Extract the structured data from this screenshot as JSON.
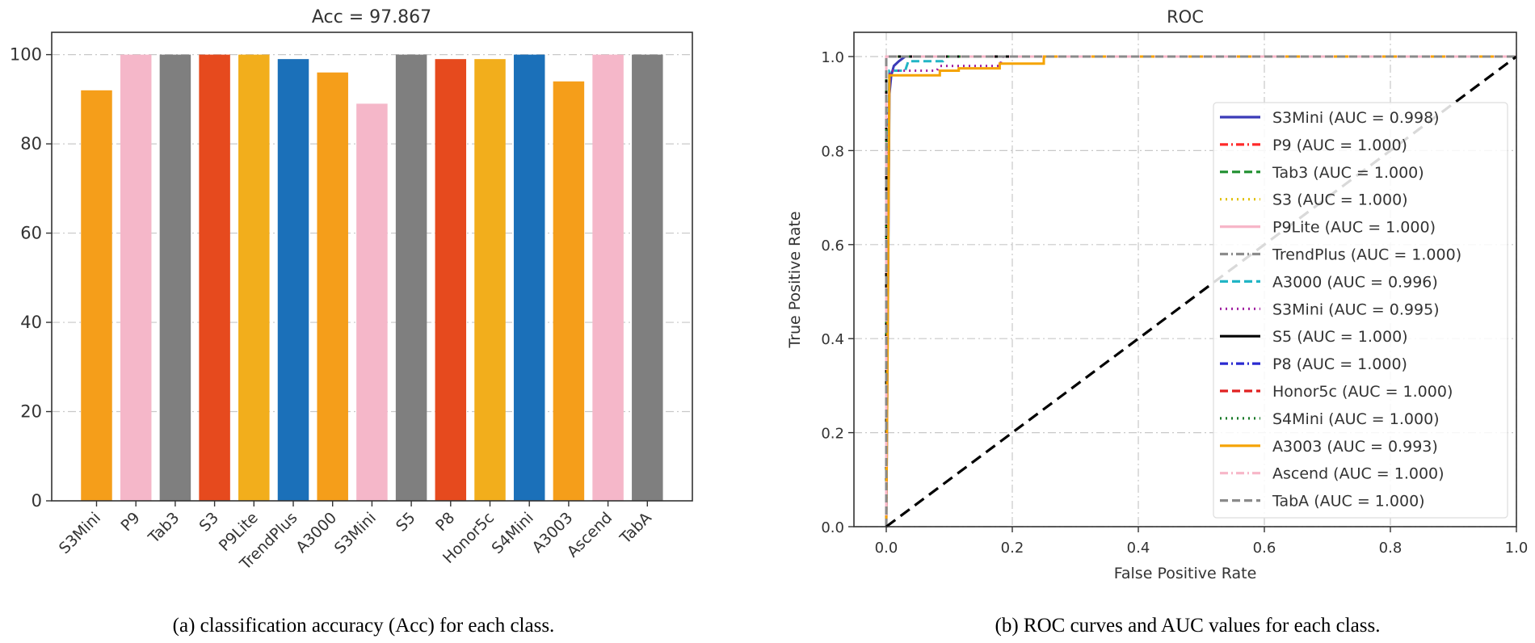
{
  "chart_data": [
    {
      "type": "bar",
      "title": "Acc = 97.867",
      "caption": "(a) classification accuracy (Acc) for each class.",
      "xlabel": "",
      "ylabel": "",
      "categories": [
        "S3Mini",
        "P9",
        "Tab3",
        "S3",
        "P9Lite",
        "TrendPlus",
        "A3000",
        "S3Mini",
        "S5",
        "P8",
        "Honor5c",
        "S4Mini",
        "A3003",
        "Ascend",
        "TabA"
      ],
      "values": [
        92,
        100,
        100,
        100,
        100,
        99,
        96,
        89,
        100,
        99,
        99,
        100,
        94,
        100,
        100
      ],
      "colors": [
        "#f59e1a",
        "#f5b7c9",
        "#7f7f7f",
        "#e64a1e",
        "#f2ae1c",
        "#1b70b9",
        "#f59e1a",
        "#f5b7c9",
        "#7f7f7f",
        "#e64a1e",
        "#f2ae1c",
        "#1b70b9",
        "#f59e1a",
        "#f5b7c9",
        "#7f7f7f"
      ],
      "ylim": [
        0,
        105
      ],
      "yticks": [
        0,
        20,
        40,
        60,
        80,
        100
      ],
      "grid": "y",
      "legend": "none"
    },
    {
      "type": "line",
      "title": "ROC",
      "caption": "(b) ROC curves and AUC values for each class.",
      "xlabel": "False Positive Rate",
      "ylabel": "True Positive Rate",
      "xlim": [
        -0.05,
        1.0
      ],
      "ylim": [
        0,
        1.05
      ],
      "xticks": [
        "0.0",
        "0.2",
        "0.4",
        "0.6",
        "0.8",
        "1.0"
      ],
      "yticks": [
        "0.0",
        "0.2",
        "0.4",
        "0.6",
        "0.8",
        "1.0"
      ],
      "grid": "both",
      "legend": "lower-right",
      "diagonal": {
        "color": "#000000",
        "style": "dashed",
        "points": [
          [
            0,
            0
          ],
          [
            1,
            1
          ]
        ]
      },
      "series": [
        {
          "name": "S3Mini (AUC = 0.998)",
          "color": "#3b3bb8",
          "style": "solid",
          "points": [
            [
              0,
              0
            ],
            [
              0.005,
              0.92
            ],
            [
              0.008,
              0.96
            ],
            [
              0.012,
              0.98
            ],
            [
              0.02,
              0.99
            ],
            [
              0.03,
              1.0
            ],
            [
              1,
              1
            ]
          ]
        },
        {
          "name": "P9 (AUC = 1.000)",
          "color": "#ff2a2a",
          "style": "dashdot",
          "points": [
            [
              0,
              0
            ],
            [
              0,
              1
            ],
            [
              1,
              1
            ]
          ]
        },
        {
          "name": "Tab3 (AUC = 1.000)",
          "color": "#1f8f2f",
          "style": "dashed",
          "points": [
            [
              0,
              0
            ],
            [
              0,
              1
            ],
            [
              1,
              1
            ]
          ]
        },
        {
          "name": "S3 (AUC = 1.000)",
          "color": "#e0c000",
          "style": "dotted",
          "points": [
            [
              0,
              0
            ],
            [
              0,
              1
            ],
            [
              1,
              1
            ]
          ]
        },
        {
          "name": "P9Lite (AUC = 1.000)",
          "color": "#f7b6c8",
          "style": "solid",
          "points": [
            [
              0,
              0
            ],
            [
              0,
              1
            ],
            [
              1,
              1
            ]
          ]
        },
        {
          "name": "TrendPlus (AUC = 1.000)",
          "color": "#8c8c8c",
          "style": "dashdot",
          "points": [
            [
              0,
              0
            ],
            [
              0,
              1
            ],
            [
              1,
              1
            ]
          ]
        },
        {
          "name": "A3000 (AUC = 0.996)",
          "color": "#21b5c5",
          "style": "dashed",
          "points": [
            [
              0,
              0
            ],
            [
              0.002,
              0.7
            ],
            [
              0.005,
              0.97
            ],
            [
              0.03,
              0.97
            ],
            [
              0.035,
              0.99
            ],
            [
              0.09,
              0.99
            ],
            [
              0.095,
              1.0
            ],
            [
              1,
              1
            ]
          ]
        },
        {
          "name": "S3Mini (AUC = 0.995)",
          "color": "#a020a0",
          "style": "dotted",
          "points": [
            [
              0,
              0
            ],
            [
              0.003,
              0.85
            ],
            [
              0.006,
              0.97
            ],
            [
              0.08,
              0.97
            ],
            [
              0.085,
              0.98
            ],
            [
              0.18,
              0.98
            ],
            [
              0.185,
              1.0
            ],
            [
              1,
              1
            ]
          ]
        },
        {
          "name": "S5 (AUC = 1.000)",
          "color": "#000000",
          "style": "solid",
          "points": [
            [
              0,
              0
            ],
            [
              0,
              1
            ],
            [
              1,
              1
            ]
          ]
        },
        {
          "name": "P8 (AUC = 1.000)",
          "color": "#2a2ad0",
          "style": "dashdot",
          "points": [
            [
              0,
              0
            ],
            [
              0,
              1
            ],
            [
              1,
              1
            ]
          ]
        },
        {
          "name": "Honor5c (AUC = 1.000)",
          "color": "#e02020",
          "style": "dashed",
          "points": [
            [
              0,
              0
            ],
            [
              0,
              1
            ],
            [
              1,
              1
            ]
          ]
        },
        {
          "name": "S4Mini (AUC = 1.000)",
          "color": "#1a7a2a",
          "style": "dotted",
          "points": [
            [
              0,
              0
            ],
            [
              0,
              1
            ],
            [
              1,
              1
            ]
          ]
        },
        {
          "name": "A3003 (AUC = 0.993)",
          "color": "#f5a300",
          "style": "solid",
          "points": [
            [
              0,
              0
            ],
            [
              0.005,
              0.96
            ],
            [
              0.085,
              0.96
            ],
            [
              0.085,
              0.97
            ],
            [
              0.115,
              0.97
            ],
            [
              0.115,
              0.975
            ],
            [
              0.18,
              0.975
            ],
            [
              0.18,
              0.985
            ],
            [
              0.25,
              0.985
            ],
            [
              0.25,
              1.0
            ],
            [
              1,
              1
            ]
          ]
        },
        {
          "name": "Ascend (AUC = 1.000)",
          "color": "#f7b6c8",
          "style": "dashdot",
          "points": [
            [
              0,
              0
            ],
            [
              0,
              1
            ],
            [
              1,
              1
            ]
          ]
        },
        {
          "name": "TabA (AUC = 1.000)",
          "color": "#8a8a8a",
          "style": "dashed",
          "points": [
            [
              0,
              0
            ],
            [
              0,
              1
            ],
            [
              1,
              1
            ]
          ]
        }
      ]
    }
  ]
}
